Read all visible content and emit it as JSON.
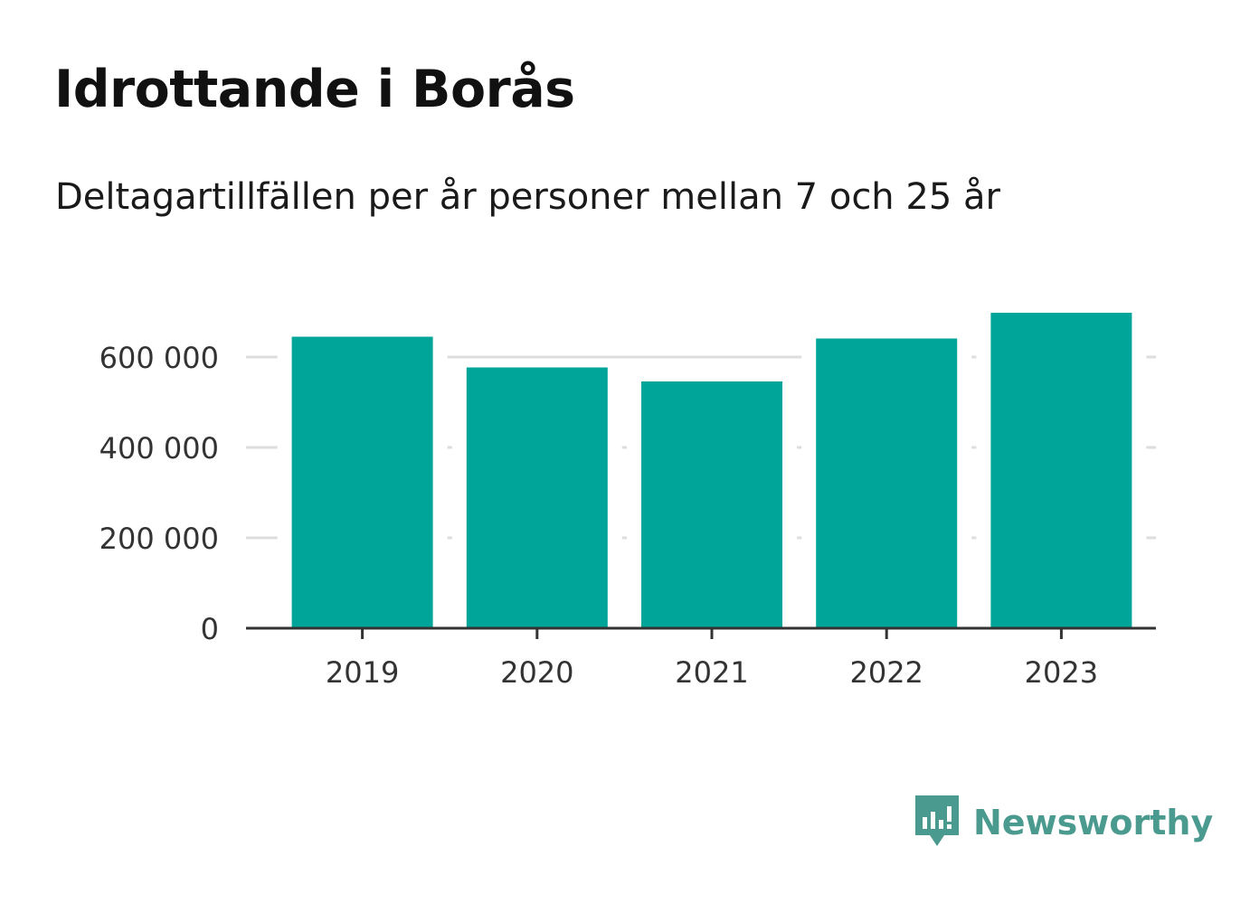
{
  "title": "Idrottande i Borås",
  "subtitle": "Deltagartillfällen per år personer mellan 7 och 25 år",
  "brand": {
    "name": "Newsworthy",
    "icon": "newsworthy-logo-icon"
  },
  "colors": {
    "bar": "#00a59a",
    "grid": "#dddddd",
    "axis": "#333333",
    "brand": "#4a9a8f"
  },
  "chart_data": {
    "type": "bar",
    "categories": [
      "2019",
      "2020",
      "2021",
      "2022",
      "2023"
    ],
    "values": [
      645000,
      577000,
      546000,
      641000,
      698000
    ],
    "ylim": [
      0,
      700000
    ],
    "yticks": [
      0,
      200000,
      400000,
      600000
    ],
    "ytick_labels": [
      "0",
      "200 000",
      "400 000",
      "600 000"
    ],
    "grid": true
  }
}
